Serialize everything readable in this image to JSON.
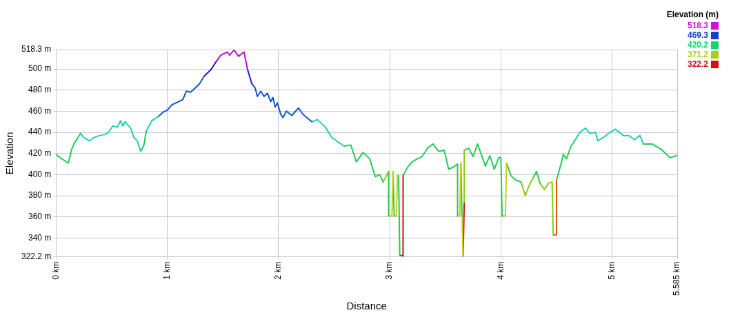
{
  "chart_data": {
    "type": "line",
    "xlabel": "Distance",
    "ylabel": "Elevation",
    "clabel": "Elevation (m)",
    "clim": [
      322.2,
      518.3
    ],
    "cticks": [
      518.3,
      469.3,
      420.2,
      371.2,
      322.2
    ],
    "series": [
      {
        "color": "#22cc55",
        "x": [
          0,
          0.05,
          0.11,
          0.14,
          0.16,
          0.22
        ],
        "values": [
          419,
          415,
          411,
          424,
          429,
          439
        ]
      },
      {
        "color": "#22ccbb",
        "x": [
          0.22,
          0.25,
          0.3,
          0.34,
          0.39,
          0.44,
          0.47,
          0.51,
          0.55,
          0.58,
          0.6,
          0.62,
          0.67,
          0.7,
          0.73,
          0.76
        ],
        "values": [
          439,
          435,
          432,
          435,
          437,
          438,
          440,
          446,
          445,
          451,
          446,
          450,
          444,
          435,
          432,
          422
        ]
      },
      {
        "color": "#22cc55",
        "x": [
          0.76,
          0.79,
          0.81
        ],
        "values": [
          422,
          428,
          441
        ]
      },
      {
        "color": "#22ccbb",
        "x": [
          0.81,
          0.86,
          0.92
        ],
        "values": [
          441,
          451,
          455
        ]
      },
      {
        "color": "#1155cc",
        "x": [
          0.92,
          0.96,
          1.0,
          1.04,
          1.1,
          1.14,
          1.17,
          1.21,
          1.25,
          1.29,
          1.33
        ],
        "values": [
          455,
          459,
          461,
          466,
          469,
          471,
          479,
          478,
          482,
          486,
          493
        ]
      },
      {
        "color": "#3311cc",
        "x": [
          1.33,
          1.39,
          1.44
        ],
        "values": [
          493,
          499,
          507
        ]
      },
      {
        "color": "#bb11cc",
        "x": [
          1.44,
          1.48,
          1.54,
          1.56,
          1.6,
          1.64,
          1.69,
          1.72
        ],
        "values": [
          507,
          513,
          516,
          513,
          518,
          512,
          516,
          500
        ]
      },
      {
        "color": "#3311cc",
        "x": [
          1.72,
          1.76
        ],
        "values": [
          500,
          486
        ]
      },
      {
        "color": "#1155cc",
        "x": [
          1.76,
          1.79,
          1.81,
          1.84,
          1.87,
          1.9,
          1.93,
          1.95,
          1.97,
          1.99,
          2.02,
          2.04,
          2.07,
          2.12,
          2.18,
          2.22,
          2.3
        ],
        "values": [
          486,
          482,
          474,
          479,
          474,
          477,
          469,
          473,
          464,
          468,
          457,
          454,
          460,
          456,
          463,
          457,
          450
        ]
      },
      {
        "color": "#22ccbb",
        "x": [
          2.3,
          2.35,
          2.42,
          2.48,
          2.52,
          2.59
        ],
        "values": [
          450,
          452,
          445,
          435,
          432,
          427
        ]
      },
      {
        "color": "#22cc55",
        "x": [
          2.59,
          2.65,
          2.7,
          2.76,
          2.82,
          2.87,
          2.91,
          2.94
        ],
        "values": [
          427,
          428,
          412,
          421,
          415,
          398,
          400,
          393
        ]
      },
      {
        "color": "#88cc11",
        "x": [
          2.94,
          2.99
        ],
        "values": [
          393,
          403
        ]
      },
      {
        "color": "#22cc55",
        "x": [
          2.99,
          2.99
        ],
        "values": [
          403,
          361
        ]
      },
      {
        "color": "#cccc11",
        "x": [
          2.99,
          3.02,
          3.03
        ],
        "values": [
          361,
          361,
          403
        ]
      },
      {
        "color": "#22cc55",
        "x": [
          3.03,
          3.04
        ],
        "values": [
          403,
          361
        ]
      },
      {
        "color": "#cccc11",
        "x": [
          3.04,
          3.06,
          3.07
        ],
        "values": [
          361,
          361,
          399
        ]
      },
      {
        "color": "#22cc55",
        "x": [
          3.07,
          3.08,
          3.09
        ],
        "values": [
          399,
          399,
          324
        ]
      },
      {
        "color": "#cc1111",
        "x": [
          3.09,
          3.12,
          3.12
        ],
        "values": [
          324,
          323,
          399
        ]
      },
      {
        "color": "#22cc55",
        "x": [
          3.12,
          3.16,
          3.2,
          3.25,
          3.29,
          3.34,
          3.39,
          3.44,
          3.49,
          3.53,
          3.57,
          3.61,
          3.61
        ],
        "values": [
          399,
          407,
          412,
          415,
          417,
          425,
          429,
          422,
          423,
          405,
          407,
          410,
          361
        ]
      },
      {
        "color": "#cccc11",
        "x": [
          3.61,
          3.63,
          3.64
        ],
        "values": [
          361,
          361,
          411
        ]
      },
      {
        "color": "#22cc55",
        "x": [
          3.64,
          3.65
        ],
        "values": [
          411,
          361
        ]
      },
      {
        "color": "#cccc11",
        "x": [
          3.65,
          3.66
        ],
        "values": [
          361,
          323
        ]
      },
      {
        "color": "#cc1111",
        "x": [
          3.66,
          3.67
        ],
        "values": [
          323,
          373
        ]
      },
      {
        "color": "#88cc11",
        "x": [
          3.67,
          3.67
        ],
        "values": [
          373,
          423
        ]
      },
      {
        "color": "#22cc55",
        "x": [
          3.67,
          3.71,
          3.75,
          3.79,
          3.86,
          3.9,
          3.94,
          3.98,
          4.0,
          4.01
        ],
        "values": [
          423,
          425,
          417,
          429,
          408,
          418,
          405,
          416,
          416,
          361
        ]
      },
      {
        "color": "#cccc11",
        "x": [
          4.01,
          4.04,
          4.05
        ],
        "values": [
          361,
          361,
          411
        ]
      },
      {
        "color": "#22cc55",
        "x": [
          4.05,
          4.09,
          4.13,
          4.18
        ],
        "values": [
          411,
          399,
          395,
          393
        ]
      },
      {
        "color": "#88cc11",
        "x": [
          4.18,
          4.22,
          4.25,
          4.29
        ],
        "values": [
          393,
          380,
          389,
          397
        ]
      },
      {
        "color": "#22cc55",
        "x": [
          4.29,
          4.32,
          4.35
        ],
        "values": [
          397,
          403,
          392
        ]
      },
      {
        "color": "#88cc11",
        "x": [
          4.35,
          4.39,
          4.43,
          4.46,
          4.47
        ],
        "values": [
          392,
          386,
          392,
          393,
          343
        ]
      },
      {
        "color": "#dd5511",
        "x": [
          4.47,
          4.5,
          4.5
        ],
        "values": [
          343,
          343,
          395
        ]
      },
      {
        "color": "#22cc55",
        "x": [
          4.5,
          4.54,
          4.56,
          4.59,
          4.63,
          4.67
        ],
        "values": [
          395,
          410,
          419,
          415,
          427,
          433
        ]
      },
      {
        "color": "#22ccbb",
        "x": [
          4.67,
          4.71,
          4.76,
          4.8,
          4.85,
          4.87,
          4.92,
          4.98,
          5.03,
          5.1,
          5.15,
          5.2,
          5.25,
          5.28
        ],
        "values": [
          433,
          440,
          444,
          439,
          440,
          432,
          435,
          440,
          443,
          437,
          437,
          433,
          437,
          429
        ]
      },
      {
        "color": "#22cc55",
        "x": [
          5.28,
          5.36,
          5.44,
          5.52,
          5.58
        ],
        "values": [
          429,
          429,
          424,
          416,
          418
        ]
      }
    ],
    "xlim": [
      0,
      5.585
    ],
    "xticks": [
      {
        "value": 0,
        "label": "0 km"
      },
      {
        "value": 1,
        "label": "1 km"
      },
      {
        "value": 2,
        "label": "2 km"
      },
      {
        "value": 3,
        "label": "3 km"
      },
      {
        "value": 4,
        "label": "4 km"
      },
      {
        "value": 5,
        "label": "5 km"
      },
      {
        "value": 5.585,
        "label": "5.585 km"
      }
    ],
    "ylim": [
      322.2,
      518.3
    ],
    "yticks": [
      {
        "value": 322.2,
        "label": "322.2 m"
      },
      {
        "value": 340,
        "label": "340 m"
      },
      {
        "value": 360,
        "label": "360 m"
      },
      {
        "value": 380,
        "label": "380 m"
      },
      {
        "value": 400,
        "label": "400 m"
      },
      {
        "value": 420,
        "label": "420 m"
      },
      {
        "value": 440,
        "label": "440 m"
      },
      {
        "value": 460,
        "label": "460 m"
      },
      {
        "value": 480,
        "label": "480 m"
      },
      {
        "value": 500,
        "label": "500 m"
      },
      {
        "value": 518.3,
        "label": "518.3 m"
      }
    ],
    "grid": true,
    "legend": false,
    "marker": "none",
    "line_style": "solid"
  }
}
